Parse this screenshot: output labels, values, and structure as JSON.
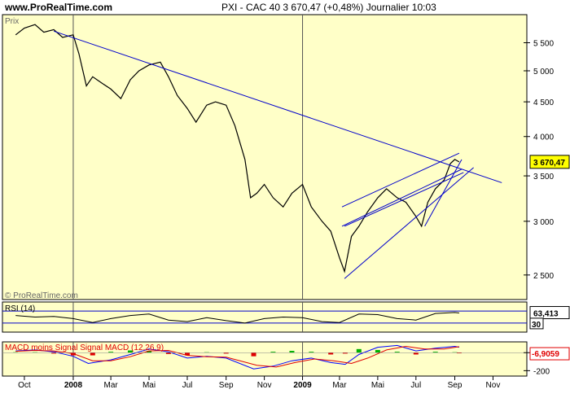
{
  "header": {
    "site": "www.ProRealTime.com",
    "title": "PXI - CAC 40    3 670,47 (+0,48%)    Journalier  10:03"
  },
  "colors": {
    "panel_bg": "#FFFFC8",
    "price_line": "#000000",
    "trendline": "#0000CC",
    "last_tag": "#FFFF00",
    "rsi_line": "#000000",
    "macd_line": "#0000FF",
    "signal_line": "#E00000",
    "hist_pos": "#00B000",
    "hist_neg": "#E00000"
  },
  "chart_data": [
    {
      "type": "line",
      "panel": "price",
      "panel_label": "Prix",
      "watermark": "© ProRealTime.com",
      "x_ticks": [
        "Oct",
        "2008",
        "Mar",
        "Mai",
        "Jul",
        "Sep",
        "Nov",
        "2009",
        "Mar",
        "Mai",
        "Jul",
        "Sep",
        "Nov"
      ],
      "y_ticks": [
        "5 500",
        "5 000",
        "4 500",
        "4 000",
        "3 500",
        "3 000",
        "2 500"
      ],
      "y_tick_values": [
        5500,
        5000,
        4500,
        4000,
        3500,
        3000,
        2500
      ],
      "ylim": [
        2300,
        6050
      ],
      "y_scale": "log",
      "last_value_label": "3 670,47",
      "last_value": 3670.47,
      "series": [
        {
          "x": [
            "2007-10-01",
            "2007-10-15",
            "2007-11-01",
            "2007-11-15",
            "2007-12-01",
            "2007-12-15",
            "2008-01-01",
            "2008-01-10",
            "2008-01-22",
            "2008-02-01",
            "2008-02-15",
            "2008-03-01",
            "2008-03-17",
            "2008-04-01",
            "2008-04-15",
            "2008-05-01",
            "2008-05-19",
            "2008-06-01",
            "2008-06-15",
            "2008-07-01",
            "2008-07-15",
            "2008-08-01",
            "2008-08-15",
            "2008-09-01",
            "2008-09-15",
            "2008-10-01",
            "2008-10-10",
            "2008-10-20",
            "2008-11-01",
            "2008-11-15",
            "2008-12-01",
            "2008-12-15",
            "2009-01-01",
            "2009-01-15",
            "2009-02-01",
            "2009-02-15",
            "2009-03-01",
            "2009-03-09",
            "2009-03-20",
            "2009-04-01",
            "2009-04-15",
            "2009-05-01",
            "2009-05-15",
            "2009-06-01",
            "2009-06-15",
            "2009-07-01",
            "2009-07-10",
            "2009-07-20",
            "2009-08-01",
            "2009-08-15",
            "2009-08-25",
            "2009-09-01",
            "2009-09-08"
          ],
          "values": [
            5650,
            5780,
            5850,
            5700,
            5750,
            5600,
            5650,
            5300,
            4750,
            4900,
            4800,
            4700,
            4550,
            4850,
            5000,
            5100,
            5150,
            4900,
            4600,
            4400,
            4200,
            4450,
            4500,
            4450,
            4150,
            3700,
            3250,
            3300,
            3400,
            3250,
            3150,
            3300,
            3400,
            3150,
            3000,
            2900,
            2650,
            2530,
            2850,
            2950,
            3100,
            3250,
            3350,
            3250,
            3200,
            3050,
            2950,
            3200,
            3350,
            3450,
            3650,
            3700,
            3670
          ]
        }
      ],
      "trendlines": [
        {
          "x": [
            "2007-12-01",
            "2009-11-15"
          ],
          "y": [
            5720,
            3420
          ]
        },
        {
          "x": [
            "2009-03-09",
            "2009-10-01"
          ],
          "y": [
            2470,
            3600
          ]
        },
        {
          "x": [
            "2009-03-05",
            "2009-09-08"
          ],
          "y": [
            3150,
            3780
          ]
        },
        {
          "x": [
            "2009-03-05",
            "2009-09-12"
          ],
          "y": [
            2950,
            3580
          ]
        },
        {
          "x": [
            "2009-03-09",
            "2009-09-15"
          ],
          "y": [
            2950,
            3540
          ]
        },
        {
          "x": [
            "2009-07-15",
            "2009-09-12"
          ],
          "y": [
            2950,
            3700
          ]
        }
      ]
    },
    {
      "type": "line",
      "panel": "rsi",
      "panel_label": "RSI (14)",
      "ylim": [
        0,
        100
      ],
      "levels": [
        30,
        70
      ],
      "value_labels": [
        "63,413",
        "30"
      ],
      "series": [
        {
          "name": "RSI (14)",
          "x": [
            "2007-10-01",
            "2007-11-01",
            "2007-12-01",
            "2008-01-01",
            "2008-02-01",
            "2008-03-01",
            "2008-04-01",
            "2008-05-01",
            "2008-06-01",
            "2008-07-01",
            "2008-08-01",
            "2008-09-01",
            "2008-10-01",
            "2008-11-01",
            "2008-12-01",
            "2009-01-01",
            "2009-02-01",
            "2009-03-01",
            "2009-04-01",
            "2009-05-01",
            "2009-06-01",
            "2009-07-01",
            "2009-08-01",
            "2009-09-01",
            "2009-09-08"
          ],
          "values": [
            55,
            50,
            52,
            45,
            32,
            45,
            55,
            60,
            40,
            35,
            48,
            38,
            30,
            45,
            50,
            48,
            35,
            32,
            60,
            58,
            45,
            40,
            62,
            65,
            63.413
          ]
        }
      ]
    },
    {
      "type": "line",
      "panel": "macd",
      "panel_label": "MACD moins Signal Signal MACD (12,26,9)",
      "y_ticks": [
        "0",
        "-200"
      ],
      "y_tick_values": [
        0,
        -200
      ],
      "ylim": [
        -260,
        120
      ],
      "value_labels": [
        "-6,9059"
      ],
      "series": [
        {
          "name": "MACD",
          "x": [
            "2007-10-01",
            "2007-11-01",
            "2007-12-01",
            "2008-01-01",
            "2008-01-25",
            "2008-03-01",
            "2008-04-01",
            "2008-05-01",
            "2008-06-01",
            "2008-07-01",
            "2008-08-01",
            "2008-09-01",
            "2008-10-15",
            "2008-11-15",
            "2008-12-15",
            "2009-01-15",
            "2009-02-15",
            "2009-03-10",
            "2009-04-01",
            "2009-05-01",
            "2009-06-01",
            "2009-07-01",
            "2009-08-01",
            "2009-09-01",
            "2009-09-08"
          ],
          "values": [
            20,
            30,
            10,
            -40,
            -120,
            -80,
            -20,
            40,
            10,
            -60,
            -40,
            -60,
            -180,
            -150,
            -90,
            -60,
            -110,
            -130,
            -20,
            60,
            80,
            20,
            50,
            70,
            60
          ]
        },
        {
          "name": "Signal",
          "x": [
            "2007-10-01",
            "2007-11-01",
            "2007-12-01",
            "2008-01-01",
            "2008-02-01",
            "2008-03-01",
            "2008-04-01",
            "2008-05-01",
            "2008-06-01",
            "2008-07-01",
            "2008-08-01",
            "2008-09-01",
            "2008-10-20",
            "2008-11-20",
            "2008-12-20",
            "2009-01-20",
            "2009-02-20",
            "2009-03-20",
            "2009-04-15",
            "2009-05-15",
            "2009-06-15",
            "2009-07-15",
            "2009-08-15",
            "2009-09-08"
          ],
          "values": [
            15,
            25,
            20,
            -10,
            -90,
            -90,
            -45,
            20,
            25,
            -30,
            -45,
            -50,
            -140,
            -160,
            -110,
            -70,
            -90,
            -120,
            -60,
            30,
            70,
            40,
            40,
            67
          ]
        }
      ],
      "histogram": {
        "x": [
          "2007-10-01",
          "2007-11-01",
          "2007-12-01",
          "2008-01-01",
          "2008-02-01",
          "2008-03-01",
          "2008-04-01",
          "2008-05-01",
          "2008-06-01",
          "2008-07-01",
          "2008-08-01",
          "2008-09-01",
          "2008-10-15",
          "2008-11-15",
          "2008-12-15",
          "2009-01-15",
          "2009-02-15",
          "2009-03-10",
          "2009-04-01",
          "2009-05-01",
          "2009-06-01",
          "2009-07-01",
          "2009-08-01",
          "2009-09-01",
          "2009-09-08"
        ],
        "values": [
          5,
          5,
          -10,
          -30,
          -30,
          10,
          25,
          20,
          -15,
          -30,
          5,
          -10,
          -40,
          10,
          20,
          10,
          -20,
          -10,
          40,
          30,
          10,
          -20,
          10,
          5,
          -6.9059
        ]
      }
    }
  ]
}
